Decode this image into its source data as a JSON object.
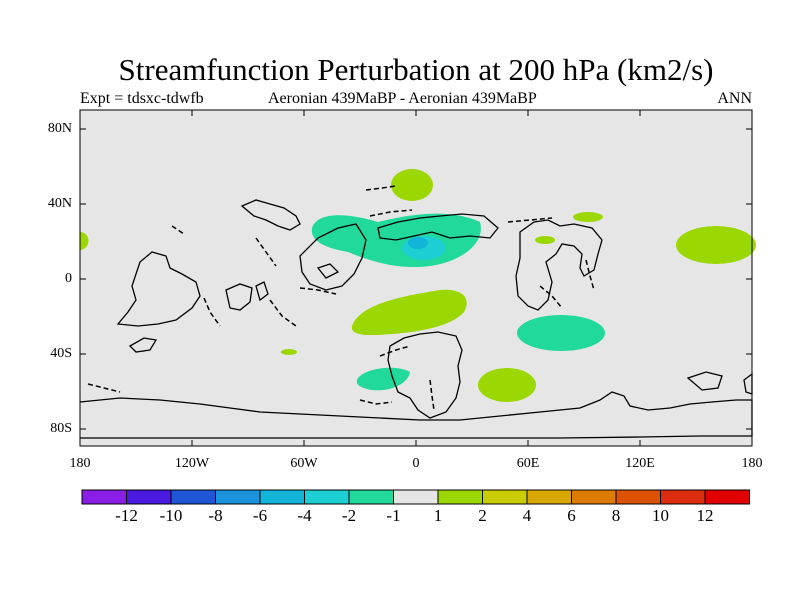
{
  "title": "Streamfunction Perturbation at 200 hPa (km2/s)",
  "subtitle": {
    "left": "Expt = tdsxc-tdwfb",
    "center": "Aeronian 439MaBP - Aeronian 439MaBP",
    "right": "ANN"
  },
  "axes": {
    "y_labels": [
      "80N",
      "40N",
      "0",
      "40S",
      "80S"
    ],
    "x_labels": [
      "180",
      "120W",
      "60W",
      "0",
      "60E",
      "120E",
      "180"
    ]
  },
  "colorbar": {
    "labels": [
      "-12",
      "-10",
      "-8",
      "-6",
      "-4",
      "-2",
      "-1",
      "1",
      "2",
      "4",
      "6",
      "8",
      "10",
      "12"
    ],
    "colors": [
      "#8a1ee6",
      "#4a1ae0",
      "#1f56d8",
      "#1a92dc",
      "#12b4d8",
      "#1ccfd2",
      "#20d99a",
      "#e6e6e6",
      "#9bd700",
      "#c8cc00",
      "#d9a800",
      "#dd7a00",
      "#dd5200",
      "#dc2c10",
      "#e00000"
    ]
  },
  "colors": {
    "ocean": "#e6e6e6",
    "positive_light": "#9bd700",
    "negative_light": "#20d99a",
    "negative_mid": "#1ccfd2",
    "negative_strong": "#12b4d8"
  }
}
